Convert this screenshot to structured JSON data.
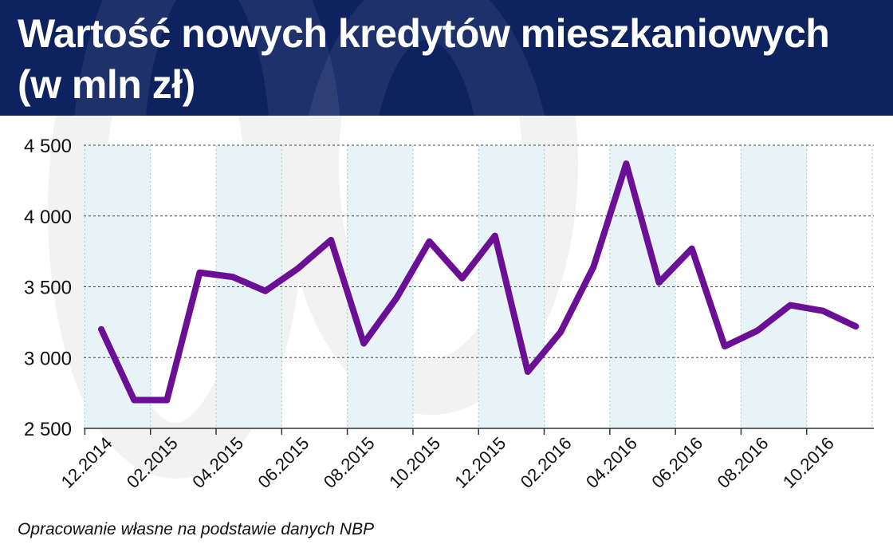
{
  "header": {
    "title_line1": "Wartość nowych kredytów mieszkaniowych",
    "title_line2": "(w mln zł)"
  },
  "source": "Opracowanie własne na podstawie danych NBP",
  "colors": {
    "header_bg": "#0f2260",
    "line": "#6a0f96",
    "band": "#e7f3f7",
    "grid": "#444444"
  },
  "chart_data": {
    "type": "line",
    "title": "Wartość nowych kredytów mieszkaniowych (w mln zł)",
    "ylim": [
      2500,
      4500
    ],
    "yticks": [
      2500,
      3000,
      3500,
      4000,
      4500
    ],
    "ytick_labels": [
      "2 500",
      "3 000",
      "3 500",
      "4 000",
      "4 500"
    ],
    "grid": true,
    "x": [
      "12.2014",
      "01.2015",
      "02.2015",
      "03.2015",
      "04.2015",
      "05.2015",
      "06.2015",
      "07.2015",
      "08.2015",
      "09.2015",
      "10.2015",
      "11.2015",
      "12.2015",
      "01.2016",
      "02.2016",
      "03.2016",
      "04.2016",
      "05.2016",
      "06.2016",
      "07.2016",
      "08.2016",
      "09.2016",
      "10.2016",
      "11.2016"
    ],
    "xtick_labels": [
      "12.2014",
      "02.2015",
      "04.2015",
      "06.2015",
      "08.2015",
      "10.2015",
      "12.2015",
      "02.2016",
      "04.2016",
      "06.2016",
      "08.2016",
      "10.2016"
    ],
    "series": [
      {
        "values": [
          3200,
          2700,
          2700,
          3600,
          3570,
          3470,
          3630,
          3830,
          3100,
          3420,
          3820,
          3560,
          3860,
          2900,
          3180,
          3640,
          4370,
          3530,
          3770,
          3080,
          3190,
          3370,
          3330,
          3220
        ]
      }
    ]
  }
}
